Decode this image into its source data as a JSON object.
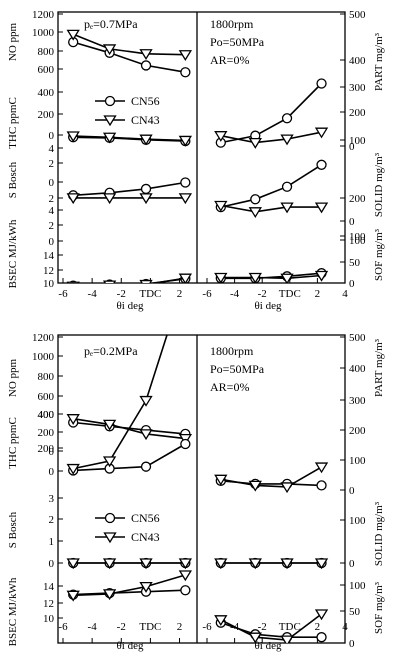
{
  "chart_data": [
    {
      "type": "line",
      "annotations": {
        "pe": "pₑ=0.7MPa",
        "rpm": "1800rpm",
        "po": "Po=50MPa",
        "ar": "AR=0%"
      },
      "xlabel_left": "θi   deg",
      "xlabel_right": "θi   deg",
      "xticks_left": [
        "-6",
        "-4",
        "-2",
        "TDC",
        "2"
      ],
      "xticks_right": [
        "-6",
        "-4",
        "-2",
        "TDC",
        "2",
        "4"
      ],
      "legend": [
        {
          "name": "CN56",
          "marker": "circle"
        },
        {
          "name": "CN43",
          "marker": "triangle-down"
        }
      ],
      "left_axes": [
        {
          "label": "NO  ppm",
          "ticks": [
            "1200",
            "1000",
            "800",
            "600"
          ]
        },
        {
          "label": "THC  ppmC",
          "ticks": [
            "400",
            "200",
            "0"
          ]
        },
        {
          "label": "S  Bosch",
          "ticks": [
            "4",
            "2",
            "0",
            "2"
          ]
        },
        {
          "label": "BSEC  MJ/kWh",
          "ticks": [
            "4",
            "2",
            "0",
            "14",
            "12",
            "10"
          ]
        }
      ],
      "right_axes": [
        {
          "label": "PART  mg/m³",
          "ticks": [
            "500",
            "400",
            "300",
            "200",
            "100"
          ]
        },
        {
          "label": "SOLID  mg/m³",
          "ticks": [
            "0",
            "200",
            "100"
          ]
        },
        {
          "label": "SOF  mg/m³",
          "ticks": [
            "0",
            "100",
            "50",
            "0"
          ]
        }
      ],
      "series_left": [
        {
          "name": "CN56",
          "quantity": "NO",
          "x": [
            -5.3,
            -2.8,
            -0.3,
            2.4
          ],
          "y": [
            890,
            780,
            650,
            580
          ]
        },
        {
          "name": "CN43",
          "quantity": "NO",
          "x": [
            -5.3,
            -2.8,
            -0.3,
            2.4
          ],
          "y": [
            970,
            820,
            770,
            760
          ]
        },
        {
          "name": "CN56",
          "quantity": "THC",
          "x": [
            -5.3,
            -2.8,
            -0.3,
            2.4
          ],
          "y": [
            40,
            35,
            20,
            10
          ]
        },
        {
          "name": "CN43",
          "quantity": "THC",
          "x": [
            -5.3,
            -2.8,
            -0.3,
            2.4
          ],
          "y": [
            50,
            40,
            25,
            15
          ]
        },
        {
          "name": "CN56",
          "quantity": "S Bosch",
          "x": [
            -5.3,
            -2.8,
            -0.3,
            2.4
          ],
          "y": [
            2.0,
            2.2,
            2.5,
            3.0
          ]
        },
        {
          "name": "CN43",
          "quantity": "S Bosch",
          "x": [
            -5.3,
            -2.8,
            -0.3,
            2.4
          ],
          "y": [
            1.8,
            1.8,
            1.8,
            1.8
          ]
        },
        {
          "name": "CN56",
          "quantity": "BSEC",
          "x": [
            -5.3,
            -2.8,
            -0.3,
            2.4
          ],
          "y": [
            9.8,
            10.0,
            10.1,
            11.0
          ]
        },
        {
          "name": "CN43",
          "quantity": "BSEC",
          "x": [
            -5.3,
            -2.8,
            -0.3,
            2.4
          ],
          "y": [
            9.7,
            9.9,
            10.0,
            11.1
          ]
        }
      ],
      "series_right": [
        {
          "name": "CN56",
          "quantity": "PART",
          "x": [
            -5.0,
            -2.5,
            -0.2,
            2.3
          ],
          "y": [
            130,
            150,
            200,
            300
          ]
        },
        {
          "name": "CN43",
          "quantity": "PART",
          "x": [
            -5.0,
            -2.5,
            -0.2,
            2.3
          ],
          "y": [
            150,
            130,
            140,
            160
          ]
        },
        {
          "name": "CN56",
          "quantity": "SOLID",
          "x": [
            -5.0,
            -2.5,
            -0.2,
            2.3
          ],
          "y": [
            105,
            130,
            170,
            240
          ]
        },
        {
          "name": "CN43",
          "quantity": "SOLID",
          "x": [
            -5.0,
            -2.5,
            -0.2,
            2.3
          ],
          "y": [
            110,
            90,
            105,
            105
          ]
        },
        {
          "name": "CN56",
          "quantity": "SOF",
          "x": [
            -5.0,
            -2.5,
            -0.2,
            2.3
          ],
          "y": [
            25,
            25,
            30,
            38
          ]
        },
        {
          "name": "CN43",
          "quantity": "SOF",
          "x": [
            -5.0,
            -2.5,
            -0.2,
            2.3
          ],
          "y": [
            27,
            27,
            25,
            32
          ]
        }
      ]
    },
    {
      "type": "line",
      "annotations": {
        "pe": "pₑ=0.2MPa",
        "rpm": "1800rpm",
        "po": "Po=50MPa",
        "ar": "AR=0%"
      },
      "xlabel_left": "θi   deg",
      "xlabel_right": "θi   deg",
      "xticks_left": [
        "-6",
        "-4",
        "-2",
        "TDC",
        "2"
      ],
      "xticks_right": [
        "-6",
        "-4",
        "-2",
        "TDC",
        "2",
        "4"
      ],
      "legend": [
        {
          "name": "CN56",
          "marker": "circle"
        },
        {
          "name": "CN43",
          "marker": "triangle-down"
        }
      ],
      "left_axes": [
        {
          "label": "NO  ppm",
          "ticks": [
            "1200",
            "1000",
            "800",
            "600",
            "400",
            "200",
            "0"
          ]
        },
        {
          "label": "THC  ppmC",
          "ticks": [
            "400",
            "200",
            "0"
          ]
        },
        {
          "label": "S  Bosch",
          "ticks": [
            "3",
            "2",
            "1",
            "0"
          ]
        },
        {
          "label": "BSEC  MJ/kWh",
          "ticks": [
            "14",
            "12",
            "10"
          ]
        }
      ],
      "right_axes": [
        {
          "label": "PART  mg/m³",
          "ticks": [
            "500",
            "400",
            "300",
            "200",
            "100",
            "0"
          ]
        },
        {
          "label": "SOLID  mg/m³",
          "ticks": [
            "100",
            "0"
          ]
        },
        {
          "label": "SOF  mg/m³",
          "ticks": [
            "100",
            "50",
            "0"
          ]
        }
      ],
      "series_left": [
        {
          "name": "CN56",
          "quantity": "NO",
          "x": [
            -5.3,
            -2.8,
            -0.3,
            2.4
          ],
          "y": [
            300,
            260,
            220,
            180
          ]
        },
        {
          "name": "CN43",
          "quantity": "NO",
          "x": [
            -5.3,
            -2.8,
            -0.3,
            2.4
          ],
          "y": [
            340,
            280,
            180,
            130
          ]
        },
        {
          "name": "CN56",
          "quantity": "THC",
          "x": [
            -5.3,
            -2.8,
            -0.3,
            2.4
          ],
          "y": [
            130,
            140,
            150,
            270
          ]
        },
        {
          "name": "CN43",
          "quantity": "THC",
          "x": [
            -5.3,
            -2.8,
            -0.3,
            2.4
          ],
          "y": [
            140,
            180,
            500,
            1150
          ]
        },
        {
          "name": "CN56",
          "quantity": "S Bosch",
          "x": [
            -5.3,
            -2.8,
            -0.3,
            2.4
          ],
          "y": [
            0,
            0,
            0,
            0
          ]
        },
        {
          "name": "CN43",
          "quantity": "S Bosch",
          "x": [
            -5.3,
            -2.8,
            -0.3,
            2.4
          ],
          "y": [
            0,
            0,
            0,
            0
          ]
        },
        {
          "name": "CN56",
          "quantity": "BSEC",
          "x": [
            -5.3,
            -2.8,
            -0.3,
            2.4
          ],
          "y": [
            13.3,
            13.5,
            13.7,
            13.9
          ]
        },
        {
          "name": "CN43",
          "quantity": "BSEC",
          "x": [
            -5.3,
            -2.8,
            -0.3,
            2.4
          ],
          "y": [
            13.2,
            13.4,
            14.4,
            16.0
          ]
        }
      ],
      "series_right": [
        {
          "name": "CN56",
          "quantity": "PART",
          "x": [
            -5.0,
            -2.5,
            -0.2,
            2.3
          ],
          "y": [
            30,
            20,
            20,
            15
          ]
        },
        {
          "name": "CN43",
          "quantity": "PART",
          "x": [
            -5.0,
            -2.5,
            -0.2,
            2.3
          ],
          "y": [
            35,
            15,
            10,
            75
          ]
        },
        {
          "name": "CN56",
          "quantity": "SOLID",
          "x": [
            -5.0,
            -2.5,
            -0.2,
            2.3
          ],
          "y": [
            0,
            0,
            0,
            0
          ]
        },
        {
          "name": "CN43",
          "quantity": "SOLID",
          "x": [
            -5.0,
            -2.5,
            -0.2,
            2.3
          ],
          "y": [
            0,
            0,
            0,
            0
          ]
        },
        {
          "name": "CN56",
          "quantity": "SOF",
          "x": [
            -5.0,
            -2.5,
            -0.2,
            2.3
          ],
          "y": [
            35,
            15,
            10,
            10
          ]
        },
        {
          "name": "CN43",
          "quantity": "SOF",
          "x": [
            -5.0,
            -2.5,
            -0.2,
            2.3
          ],
          "y": [
            40,
            10,
            5,
            50
          ]
        }
      ]
    }
  ]
}
